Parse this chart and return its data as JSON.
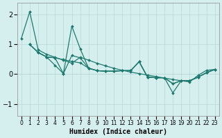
{
  "xlabel": "Humidex (Indice chaleur)",
  "background_color": "#d5efef",
  "grid_color": "#b8d8d8",
  "line_color": "#1e7a6e",
  "xlim": [
    -0.5,
    23.5
  ],
  "ylim": [
    -1.4,
    2.4
  ],
  "yticks": [
    -1,
    0,
    1,
    2
  ],
  "xticks": [
    0,
    1,
    2,
    3,
    4,
    5,
    6,
    7,
    8,
    9,
    10,
    11,
    12,
    13,
    14,
    15,
    16,
    17,
    18,
    19,
    20,
    21,
    22,
    23
  ],
  "lines": [
    {
      "x": [
        0,
        1,
        2,
        3,
        4,
        5,
        6,
        7,
        8,
        9,
        10,
        11,
        12,
        13,
        14,
        15,
        16,
        17,
        18,
        19,
        20,
        21,
        22,
        23
      ],
      "y": [
        1.2,
        2.1,
        0.82,
        0.67,
        0.57,
        0.47,
        0.37,
        0.57,
        0.47,
        0.37,
        0.28,
        0.2,
        0.13,
        0.07,
        0.02,
        -0.03,
        -0.08,
        -0.13,
        -0.18,
        -0.22,
        -0.26,
        -0.04,
        0.13,
        0.16
      ]
    },
    {
      "x": [
        1,
        2,
        3,
        4,
        5,
        6,
        7,
        8,
        9,
        10,
        11,
        12,
        13,
        14,
        15,
        16,
        17,
        18,
        19,
        20,
        21,
        22,
        23
      ],
      "y": [
        1.0,
        0.73,
        0.58,
        0.3,
        0.02,
        1.62,
        0.85,
        0.2,
        0.12,
        0.1,
        0.1,
        0.12,
        0.12,
        0.42,
        -0.1,
        -0.12,
        -0.12,
        -0.63,
        -0.22,
        -0.22,
        -0.1,
        0.05,
        0.16
      ]
    },
    {
      "x": [
        1,
        2,
        3,
        4,
        5,
        6,
        7,
        8,
        9,
        10,
        11,
        12,
        13,
        14,
        15,
        16,
        17,
        18,
        19,
        20,
        21,
        22,
        23
      ],
      "y": [
        1.0,
        0.73,
        0.58,
        0.55,
        0.02,
        0.63,
        0.55,
        0.2,
        0.12,
        0.1,
        0.1,
        0.12,
        0.12,
        0.42,
        -0.1,
        -0.12,
        -0.12,
        -0.32,
        -0.22,
        -0.22,
        -0.1,
        0.05,
        0.16
      ]
    },
    {
      "x": [
        1,
        2,
        3,
        4,
        5,
        6,
        7,
        8,
        9,
        10,
        11,
        12,
        13,
        14,
        15,
        16,
        17,
        18,
        19,
        20,
        21,
        22,
        23
      ],
      "y": [
        1.0,
        0.73,
        0.58,
        0.55,
        0.49,
        0.43,
        0.38,
        0.2,
        0.12,
        0.1,
        0.1,
        0.12,
        0.12,
        0.42,
        -0.1,
        -0.12,
        -0.12,
        -0.32,
        -0.22,
        -0.22,
        -0.1,
        0.05,
        0.16
      ]
    }
  ]
}
